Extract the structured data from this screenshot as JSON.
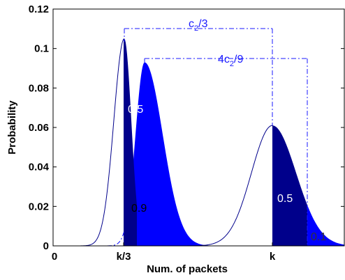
{
  "chart_data": {
    "type": "area",
    "xlabel": "Num. of packets",
    "ylabel": "Probability",
    "ylim": [
      0,
      0.12
    ],
    "y_ticks": [
      "0",
      "0.02",
      "0.04",
      "0.06",
      "0.08",
      "0.1",
      "0.12"
    ],
    "x_ticks": [
      "0",
      "k/3",
      "k"
    ],
    "series": [
      {
        "peak_x": 0.35,
        "peak_y": 0.105,
        "stroke": "#00008b",
        "fill": "#00008b"
      },
      {
        "peak_x": 0.4,
        "peak_y": 0.093,
        "stroke": "#0000ff",
        "fill": "#0000ff",
        "dashed_left": true
      },
      {
        "peak_x": 1.0,
        "peak_y": 0.061,
        "stroke": "#00008b",
        "fill": "#00008b"
      }
    ],
    "annotations": {
      "c2_3": {
        "sub": "2",
        "pre": "c",
        "post": "/3"
      },
      "c2_9": {
        "sub": "2",
        "pre": "4c",
        "post": "/9"
      }
    },
    "region_labels": [
      "0.5",
      "0.9",
      "0.5",
      "0.1"
    ],
    "colors": {
      "dark_blue": "#00008b",
      "blue": "#0000ff",
      "annotation": "#1a1aff"
    }
  }
}
